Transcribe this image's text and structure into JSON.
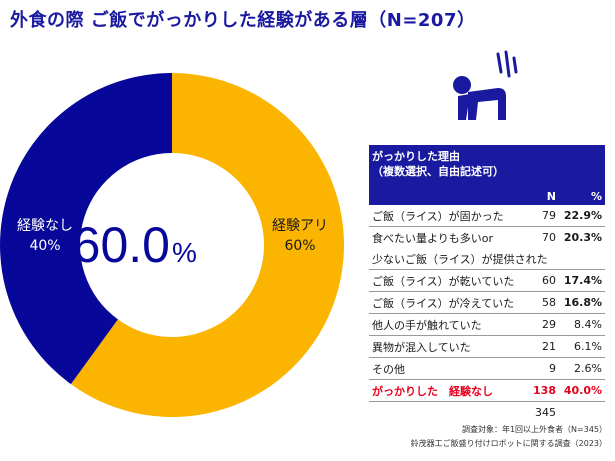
{
  "title": "外食の際 ご飯でがっかりした経験がある層（N=207）",
  "chart_data": {
    "type": "pie",
    "donut": true,
    "center_label": {
      "value": "60.0",
      "unit": "%"
    },
    "slices": [
      {
        "label": "経験アリ",
        "pct_label": "60%",
        "value": 60.0,
        "color": "#fbb400"
      },
      {
        "label": "経験なし",
        "pct_label": "40%",
        "value": 40.0,
        "color": "#07089a"
      }
    ]
  },
  "table": {
    "header_line1": "がっかりした理由",
    "header_line2": "（複数選択、自由記述可）",
    "col_n": "N",
    "col_pct": "%",
    "rows": [
      {
        "label": "ご飯（ライス）が固かった",
        "n": "79",
        "pct": "22.9%",
        "bold": true
      },
      {
        "label": "食べたい量よりも多いor",
        "n": "70",
        "pct": "20.3%",
        "bold": true,
        "cont": "少ないご飯（ライス）が提供された"
      },
      {
        "label": "ご飯（ライス）が乾いていた",
        "n": "60",
        "pct": "17.4%",
        "bold": true
      },
      {
        "label": "ご飯（ライス）が冷えていた",
        "n": "58",
        "pct": "16.8%",
        "bold": true
      },
      {
        "label": "他人の手が触れていた",
        "n": "29",
        "pct": "8.4%",
        "bold": false
      },
      {
        "label": "異物が混入していた",
        "n": "21",
        "pct": "6.1%",
        "bold": false
      },
      {
        "label": "その他",
        "n": "9",
        "pct": "2.6%",
        "bold": false
      }
    ],
    "none_row": {
      "label": "がっかりした　経験なし",
      "n": "138",
      "pct": "40.0%"
    },
    "total_n": "345"
  },
  "notes": {
    "line1": "調査対象：年1回以上外食者（N=345）",
    "line2": "鈴茂器工ご飯盛り付けロボットに関する調査（2023）"
  },
  "icon": "disappointed-person-icon"
}
